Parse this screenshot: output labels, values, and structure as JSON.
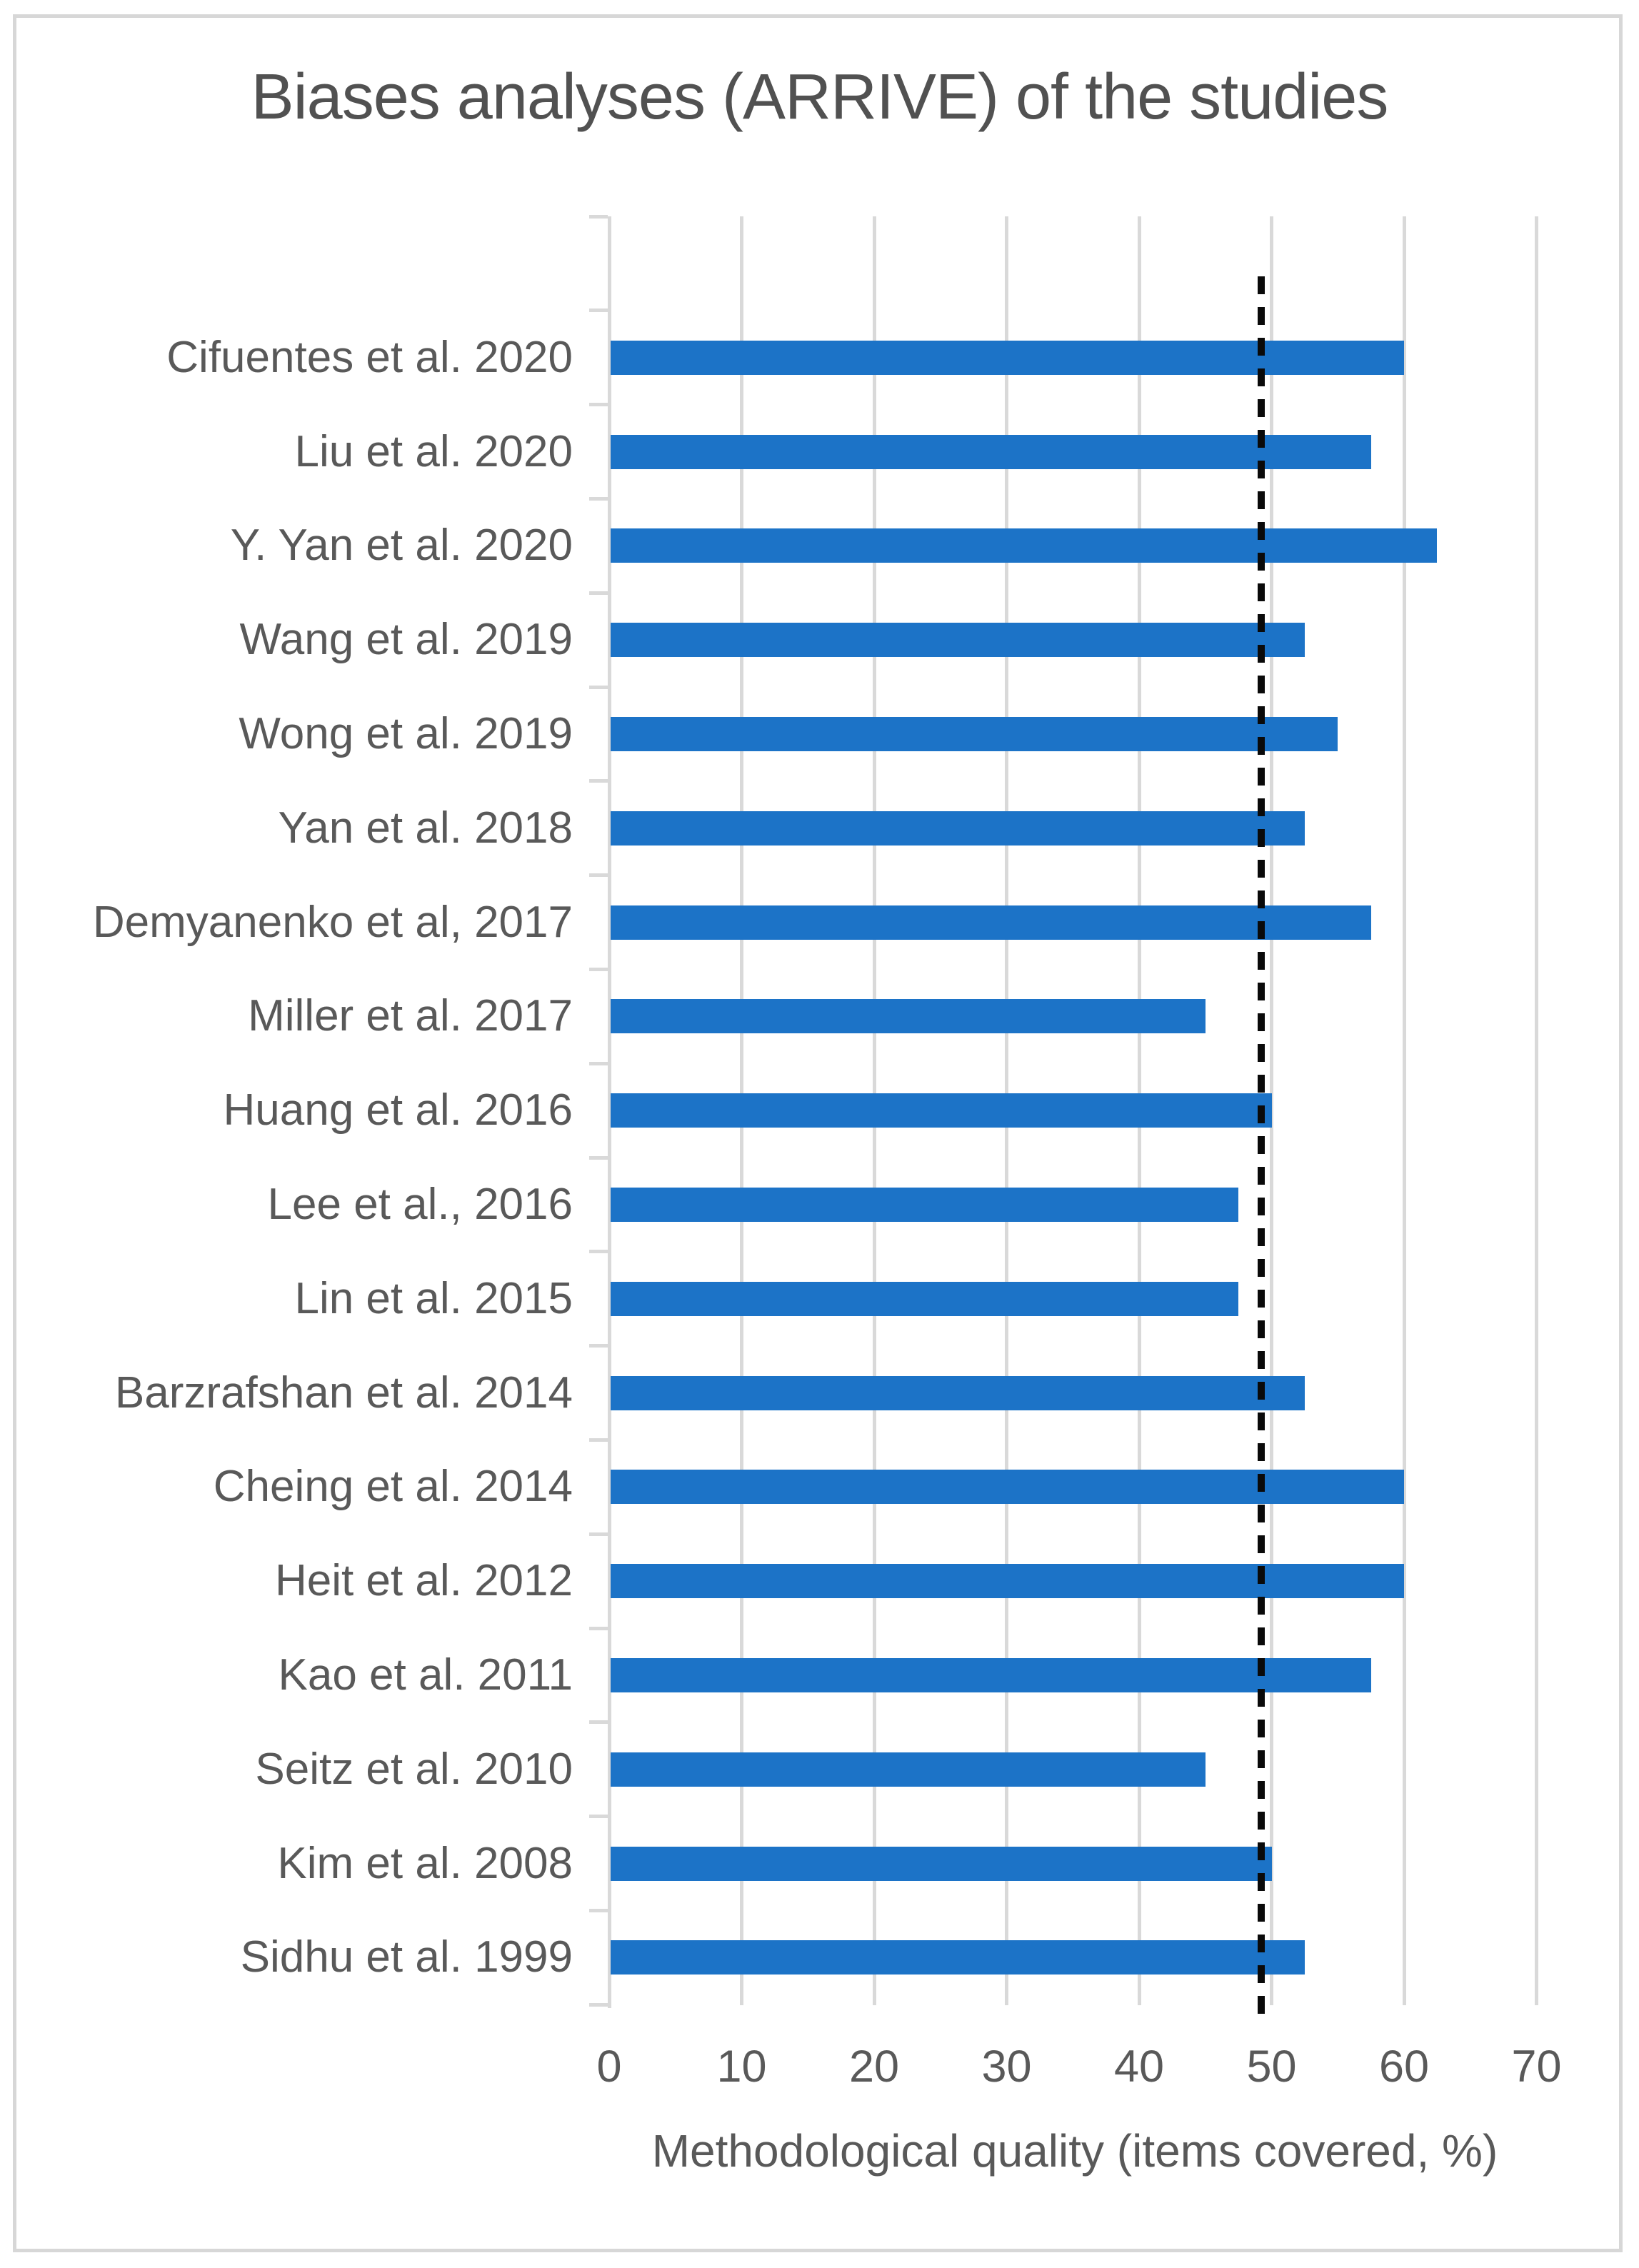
{
  "figure": {
    "border_color": "#d7d7d7",
    "background": "#ffffff"
  },
  "chart_data": {
    "type": "bar",
    "orientation": "horizontal",
    "title": "Biases analyses (ARRIVE) of the studies",
    "xlabel": "Methodological quality (items covered, %)",
    "ylabel": "",
    "xlim": [
      0,
      70
    ],
    "xticks": [
      0,
      10,
      20,
      30,
      40,
      50,
      60,
      70
    ],
    "grid": true,
    "legend": false,
    "categories": [
      "Cifuentes et al. 2020",
      "Liu et al. 2020",
      "Y. Yan et al. 2020",
      "Wang et al. 2019",
      "Wong et al. 2019",
      "Yan et al. 2018",
      "Demyanenko et al, 2017",
      "Miller et al. 2017",
      "Huang et al. 2016",
      "Lee et al., 2016",
      "Lin et al. 2015",
      "Barzrafshan et al. 2014",
      "Cheing et al. 2014",
      "Heit et al. 2012",
      "Kao et al. 2011",
      "Seitz et al. 2010",
      "Kim et al. 2008",
      "Sidhu et al. 1999"
    ],
    "values": [
      60,
      57.5,
      62.5,
      52.5,
      55,
      52.5,
      57.5,
      45,
      50,
      47.5,
      47.5,
      52.5,
      60,
      60,
      57.5,
      45,
      50,
      52.5
    ],
    "reference_line": {
      "value": 50,
      "style": "dashed",
      "color": "#0a0a0a"
    },
    "bar_color": "#1c73c7",
    "gridline_color": "#d9d9d9",
    "axis_text_color": "#595959",
    "title_color": "#515151"
  }
}
